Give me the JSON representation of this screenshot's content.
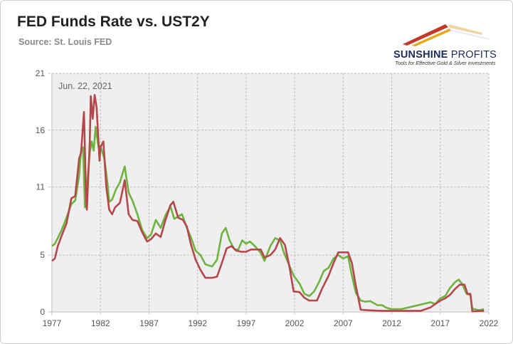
{
  "title": "FED Funds Rate vs. UST2Y",
  "source": "Source: St. Louis FED",
  "logo": {
    "name_bold": "SUNSHINE",
    "name_light": "PROFITS",
    "tagline": "Tools for Effective Gold & Silver Investments"
  },
  "colors": {
    "fed_funds": "#b5474a",
    "ust2y": "#6db33f",
    "plot_bg": "#efefef",
    "grid": "#bdbdbd",
    "logo_red": "#c0392b",
    "logo_gold": "#e6a817"
  },
  "chart_data": {
    "type": "line",
    "title": "FED Funds Rate vs. UST2Y",
    "xlabel": "",
    "ylabel": "",
    "xlim": [
      1977,
      2022
    ],
    "ylim": [
      0,
      21
    ],
    "x_ticks": [
      "1977",
      "1982",
      "1987",
      "1992",
      "1997",
      "2002",
      "2007",
      "2012",
      "2017",
      "2022"
    ],
    "y_ticks": [
      "0",
      "5",
      "11",
      "16",
      "21"
    ],
    "grid": true,
    "annotation": "Jun. 22, 2021",
    "series": [
      {
        "name": "",
        "color": "#b5474a",
        "points": [
          [
            1977.0,
            4.5
          ],
          [
            1977.3,
            4.7
          ],
          [
            1977.6,
            5.8
          ],
          [
            1978.0,
            6.7
          ],
          [
            1978.5,
            7.8
          ],
          [
            1979.0,
            10.0
          ],
          [
            1979.4,
            10.2
          ],
          [
            1979.8,
            13.5
          ],
          [
            1980.0,
            14.0
          ],
          [
            1980.3,
            17.6
          ],
          [
            1980.5,
            10.5
          ],
          [
            1980.6,
            9.0
          ],
          [
            1980.9,
            15.0
          ],
          [
            1981.0,
            19.0
          ],
          [
            1981.2,
            17.0
          ],
          [
            1981.4,
            19.1
          ],
          [
            1981.6,
            18.0
          ],
          [
            1981.9,
            13.3
          ],
          [
            1982.0,
            14.5
          ],
          [
            1982.3,
            15.0
          ],
          [
            1982.6,
            11.0
          ],
          [
            1982.9,
            9.0
          ],
          [
            1983.2,
            8.6
          ],
          [
            1983.5,
            9.2
          ],
          [
            1984.0,
            9.6
          ],
          [
            1984.5,
            11.6
          ],
          [
            1984.9,
            8.6
          ],
          [
            1985.3,
            8.1
          ],
          [
            1985.8,
            8.0
          ],
          [
            1986.3,
            7.0
          ],
          [
            1986.8,
            6.2
          ],
          [
            1987.2,
            6.4
          ],
          [
            1987.7,
            6.9
          ],
          [
            1988.2,
            6.6
          ],
          [
            1988.7,
            8.1
          ],
          [
            1989.2,
            9.4
          ],
          [
            1989.5,
            9.7
          ],
          [
            1990.0,
            8.3
          ],
          [
            1990.5,
            8.1
          ],
          [
            1990.9,
            7.5
          ],
          [
            1991.3,
            6.0
          ],
          [
            1991.8,
            4.6
          ],
          [
            1992.3,
            3.7
          ],
          [
            1992.8,
            3.0
          ],
          [
            1993.5,
            3.0
          ],
          [
            1994.0,
            3.1
          ],
          [
            1994.5,
            4.3
          ],
          [
            1995.0,
            5.6
          ],
          [
            1995.5,
            5.8
          ],
          [
            1996.0,
            5.4
          ],
          [
            1996.5,
            5.3
          ],
          [
            1997.0,
            5.3
          ],
          [
            1997.5,
            5.5
          ],
          [
            1998.0,
            5.5
          ],
          [
            1998.5,
            5.5
          ],
          [
            1998.9,
            4.8
          ],
          [
            1999.5,
            5.0
          ],
          [
            2000.0,
            5.5
          ],
          [
            2000.5,
            6.5
          ],
          [
            2001.0,
            5.9
          ],
          [
            2001.5,
            3.8
          ],
          [
            2001.9,
            1.8
          ],
          [
            2002.5,
            1.75
          ],
          [
            2003.0,
            1.25
          ],
          [
            2003.5,
            1.0
          ],
          [
            2004.3,
            1.0
          ],
          [
            2004.8,
            2.0
          ],
          [
            2005.5,
            3.2
          ],
          [
            2006.0,
            4.3
          ],
          [
            2006.5,
            5.25
          ],
          [
            2007.5,
            5.25
          ],
          [
            2007.9,
            4.3
          ],
          [
            2008.3,
            2.3
          ],
          [
            2008.8,
            0.2
          ],
          [
            2009.5,
            0.15
          ],
          [
            2011.0,
            0.1
          ],
          [
            2013.0,
            0.1
          ],
          [
            2015.0,
            0.1
          ],
          [
            2016.0,
            0.4
          ],
          [
            2017.0,
            1.0
          ],
          [
            2017.5,
            1.2
          ],
          [
            2018.0,
            1.5
          ],
          [
            2018.5,
            2.0
          ],
          [
            2019.0,
            2.4
          ],
          [
            2019.5,
            2.4
          ],
          [
            2019.8,
            1.6
          ],
          [
            2020.1,
            1.6
          ],
          [
            2020.3,
            0.05
          ],
          [
            2021.5,
            0.1
          ]
        ]
      },
      {
        "name": "",
        "color": "#6db33f",
        "points": [
          [
            1977.0,
            5.8
          ],
          [
            1977.3,
            6.0
          ],
          [
            1977.6,
            6.5
          ],
          [
            1978.0,
            7.2
          ],
          [
            1978.5,
            8.3
          ],
          [
            1979.0,
            9.5
          ],
          [
            1979.4,
            9.8
          ],
          [
            1979.8,
            12.0
          ],
          [
            1980.0,
            14.2
          ],
          [
            1980.2,
            14.5
          ],
          [
            1980.4,
            9.2
          ],
          [
            1980.6,
            11.0
          ],
          [
            1980.9,
            14.0
          ],
          [
            1981.1,
            15.0
          ],
          [
            1981.3,
            14.2
          ],
          [
            1981.5,
            16.3
          ],
          [
            1981.8,
            14.5
          ],
          [
            1982.0,
            14.6
          ],
          [
            1982.4,
            13.5
          ],
          [
            1982.7,
            11.5
          ],
          [
            1982.9,
            9.7
          ],
          [
            1983.2,
            9.9
          ],
          [
            1983.6,
            10.8
          ],
          [
            1984.0,
            11.4
          ],
          [
            1984.5,
            12.8
          ],
          [
            1984.9,
            10.5
          ],
          [
            1985.3,
            9.8
          ],
          [
            1985.8,
            8.6
          ],
          [
            1986.3,
            7.2
          ],
          [
            1986.8,
            6.5
          ],
          [
            1987.2,
            6.8
          ],
          [
            1987.7,
            8.1
          ],
          [
            1988.2,
            7.4
          ],
          [
            1988.7,
            8.5
          ],
          [
            1989.2,
            9.3
          ],
          [
            1989.6,
            8.2
          ],
          [
            1990.0,
            8.4
          ],
          [
            1990.4,
            8.6
          ],
          [
            1990.9,
            7.4
          ],
          [
            1991.3,
            6.6
          ],
          [
            1991.8,
            5.4
          ],
          [
            1992.3,
            5.0
          ],
          [
            1992.8,
            4.2
          ],
          [
            1993.5,
            4.0
          ],
          [
            1994.0,
            4.6
          ],
          [
            1994.5,
            6.9
          ],
          [
            1994.9,
            7.4
          ],
          [
            1995.3,
            6.3
          ],
          [
            1995.8,
            5.5
          ],
          [
            1996.2,
            5.5
          ],
          [
            1996.6,
            6.3
          ],
          [
            1997.0,
            6.0
          ],
          [
            1997.4,
            6.2
          ],
          [
            1997.9,
            5.8
          ],
          [
            1998.5,
            5.2
          ],
          [
            1998.9,
            4.5
          ],
          [
            1999.5,
            5.8
          ],
          [
            2000.0,
            6.5
          ],
          [
            2000.5,
            6.3
          ],
          [
            2000.9,
            5.2
          ],
          [
            2001.5,
            4.0
          ],
          [
            2001.9,
            3.2
          ],
          [
            2002.5,
            2.5
          ],
          [
            2003.0,
            1.6
          ],
          [
            2003.5,
            1.4
          ],
          [
            2004.0,
            1.8
          ],
          [
            2004.5,
            2.6
          ],
          [
            2005.0,
            3.6
          ],
          [
            2005.5,
            3.9
          ],
          [
            2006.0,
            4.7
          ],
          [
            2006.5,
            5.0
          ],
          [
            2007.0,
            4.7
          ],
          [
            2007.5,
            4.9
          ],
          [
            2007.9,
            3.2
          ],
          [
            2008.3,
            1.7
          ],
          [
            2008.8,
            1.0
          ],
          [
            2009.3,
            0.9
          ],
          [
            2009.8,
            0.95
          ],
          [
            2010.5,
            0.6
          ],
          [
            2011.0,
            0.6
          ],
          [
            2011.5,
            0.35
          ],
          [
            2012.0,
            0.25
          ],
          [
            2013.0,
            0.25
          ],
          [
            2014.0,
            0.45
          ],
          [
            2015.0,
            0.65
          ],
          [
            2016.0,
            0.85
          ],
          [
            2016.5,
            0.7
          ],
          [
            2017.0,
            1.2
          ],
          [
            2017.5,
            1.4
          ],
          [
            2018.0,
            2.1
          ],
          [
            2018.5,
            2.6
          ],
          [
            2018.9,
            2.85
          ],
          [
            2019.3,
            2.4
          ],
          [
            2019.7,
            1.6
          ],
          [
            2020.1,
            1.5
          ],
          [
            2020.3,
            0.3
          ],
          [
            2021.0,
            0.15
          ],
          [
            2021.5,
            0.25
          ]
        ]
      }
    ]
  }
}
